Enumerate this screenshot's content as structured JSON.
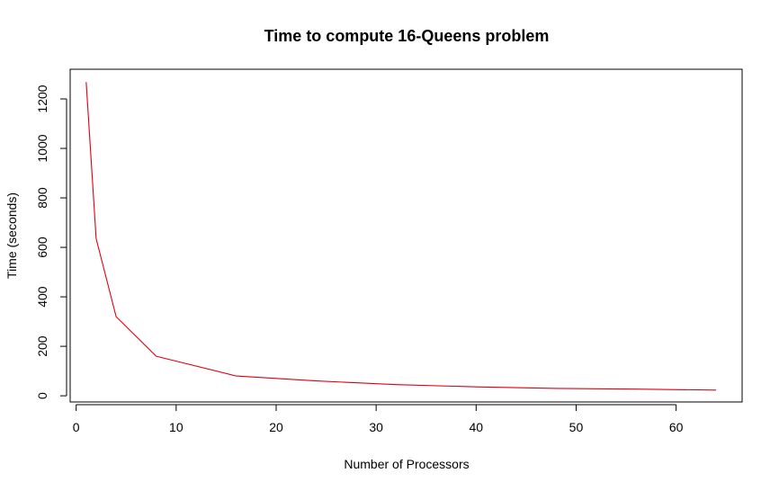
{
  "chart_data": {
    "type": "line",
    "title": "Time to compute 16-Queens problem",
    "xlabel": "Number of Processors",
    "ylabel": "Time (seconds)",
    "xlim": [
      -0.6,
      66.6
    ],
    "ylim": [
      -25,
      1320
    ],
    "xticks": [
      0,
      10,
      20,
      30,
      40,
      50,
      60
    ],
    "yticks": [
      0,
      200,
      400,
      600,
      800,
      1000,
      1200
    ],
    "grid": false,
    "series": [
      {
        "color": "#e0000f",
        "x": [
          1,
          2,
          4,
          8,
          16,
          24,
          32,
          40,
          48,
          56,
          64
        ],
        "y": [
          1268,
          635,
          320,
          160,
          80,
          60,
          45,
          36,
          30,
          27,
          23
        ]
      }
    ]
  }
}
